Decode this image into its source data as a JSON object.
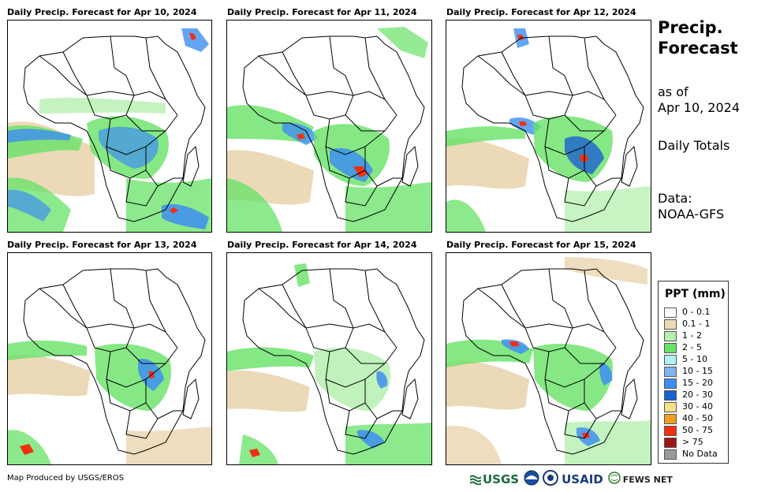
{
  "panels": [
    {
      "title": "Daily Precip. Forecast for Apr 10, 2024"
    },
    {
      "title": "Daily Precip. Forecast for Apr 11, 2024"
    },
    {
      "title": "Daily Precip. Forecast for Apr 12, 2024"
    },
    {
      "title": "Daily Precip. Forecast for Apr 13, 2024"
    },
    {
      "title": "Daily Precip. Forecast for Apr 14, 2024"
    },
    {
      "title": "Daily Precip. Forecast for Apr 15, 2024"
    }
  ],
  "sidebar": {
    "title_line1": "Precip.",
    "title_line2": "Forecast",
    "asof_line1": "as of",
    "asof_line2": "Apr 10, 2024",
    "totals": "Daily Totals",
    "data_line1": "Data:",
    "data_line2": "NOAA-GFS"
  },
  "legend": {
    "title": "PPT (mm)",
    "items": [
      {
        "label": "0 - 0.1",
        "color": "#ffffff"
      },
      {
        "label": "0.1 - 1",
        "color": "#ecd9b8"
      },
      {
        "label": "1 - 2",
        "color": "#b5f0b0"
      },
      {
        "label": "2 - 5",
        "color": "#66e266"
      },
      {
        "label": "5 - 10",
        "color": "#aef2f2"
      },
      {
        "label": "10 - 15",
        "color": "#7fb4f0"
      },
      {
        "label": "15 - 20",
        "color": "#3d8ef0"
      },
      {
        "label": "20 - 30",
        "color": "#1a5fd0"
      },
      {
        "label": "30 - 40",
        "color": "#f5e08a"
      },
      {
        "label": "40 - 50",
        "color": "#f0a020"
      },
      {
        "label": "50 - 75",
        "color": "#f03010"
      },
      {
        "label": "> 75",
        "color": "#a01414"
      },
      {
        "label": "No Data",
        "color": "#999999"
      }
    ]
  },
  "footer": {
    "credit": "Map Produced by USGS/EROS",
    "logo_usgs": "USGS",
    "logo_usaid": "USAID",
    "logo_fews": "FEWS NET"
  }
}
